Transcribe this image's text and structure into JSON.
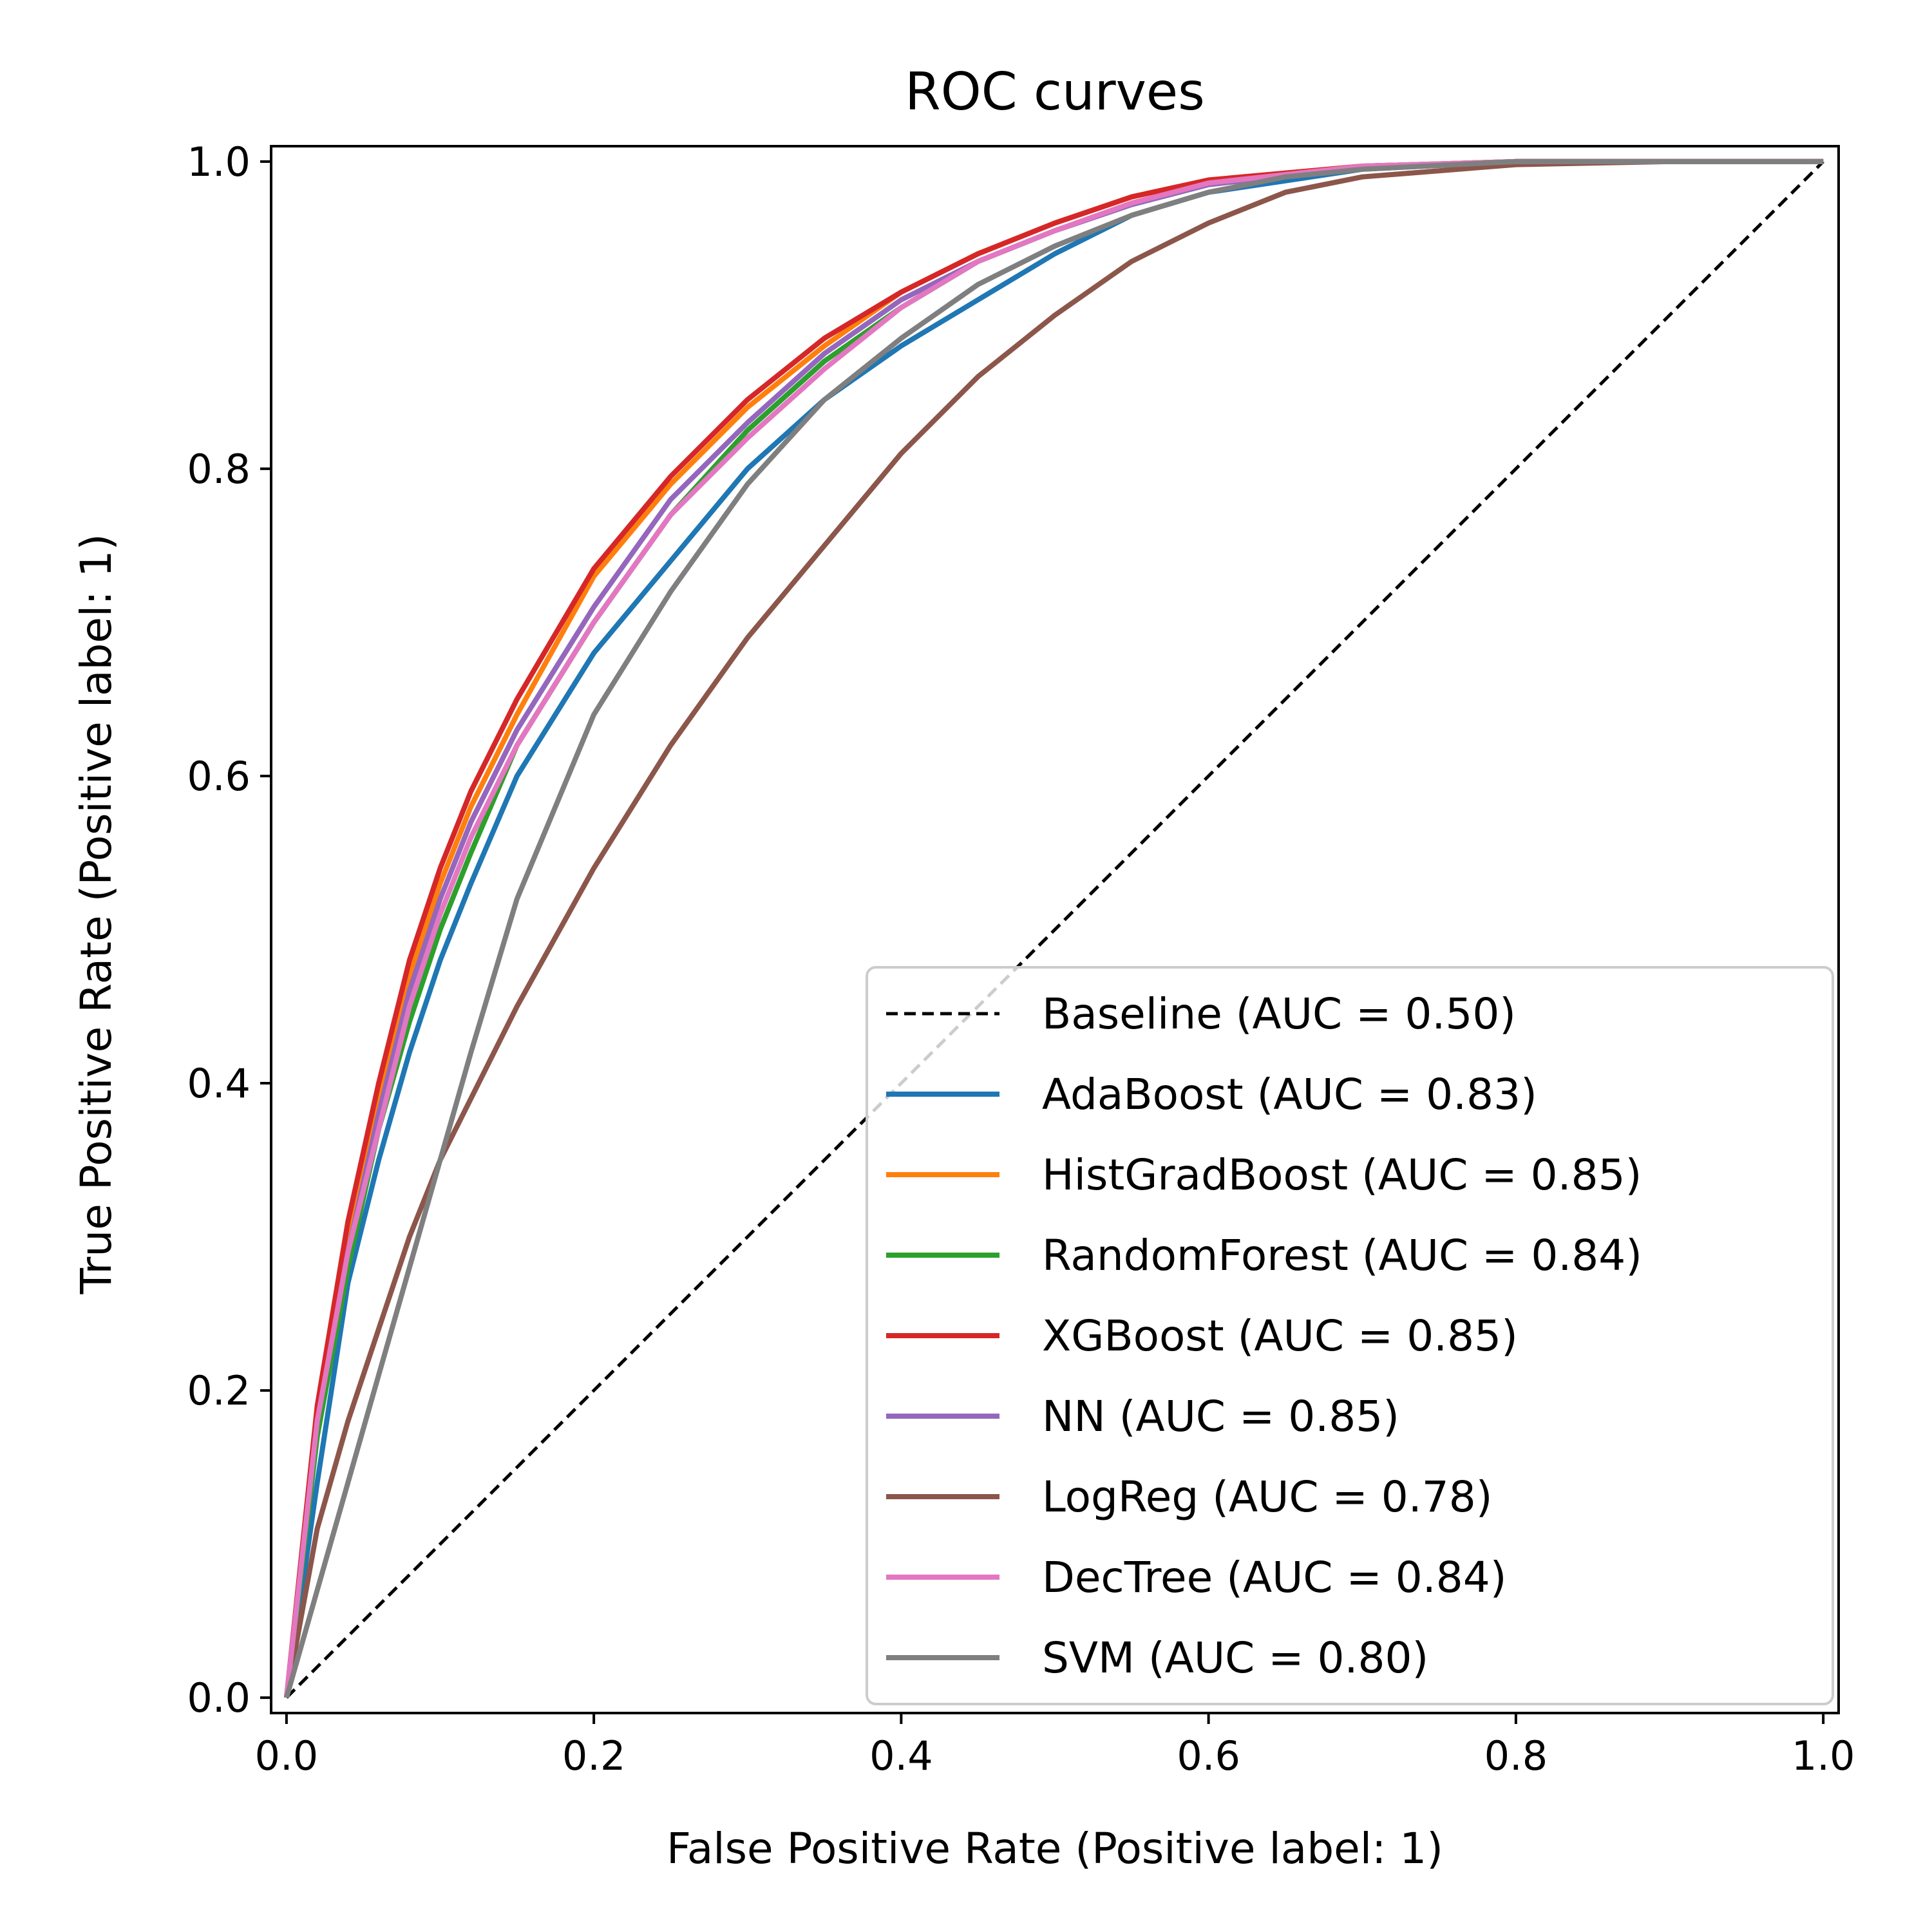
{
  "chart_data": {
    "type": "line",
    "title": "ROC curves",
    "xlabel": "False Positive Rate (Positive label: 1)",
    "ylabel": "True Positive Rate (Positive label: 1)",
    "xlim": [
      -0.01,
      1.01
    ],
    "ylim": [
      -0.01,
      1.01
    ],
    "xticks": [
      0.0,
      0.2,
      0.4,
      0.6,
      0.8,
      1.0
    ],
    "xtick_labels": [
      "0.0",
      "0.2",
      "0.4",
      "0.6",
      "0.8",
      "1.0"
    ],
    "yticks": [
      0.0,
      0.2,
      0.4,
      0.6,
      0.8,
      1.0
    ],
    "ytick_labels": [
      "0.0",
      "0.2",
      "0.4",
      "0.6",
      "0.8",
      "1.0"
    ],
    "grid": false,
    "legend_position": "lower-right",
    "series": [
      {
        "name": "Baseline (AUC = 0.50)",
        "color": "#000000",
        "dashed": true,
        "x": [
          0,
          1
        ],
        "y": [
          0,
          1
        ]
      },
      {
        "name": "AdaBoost (AUC = 0.83)",
        "color": "#1f77b4",
        "x": [
          0,
          0.02,
          0.04,
          0.06,
          0.08,
          0.1,
          0.12,
          0.15,
          0.2,
          0.25,
          0.3,
          0.35,
          0.4,
          0.45,
          0.5,
          0.55,
          0.6,
          0.7,
          0.8,
          0.9,
          1.0
        ],
        "y": [
          0,
          0.14,
          0.27,
          0.35,
          0.42,
          0.48,
          0.53,
          0.6,
          0.68,
          0.74,
          0.8,
          0.845,
          0.88,
          0.91,
          0.94,
          0.965,
          0.98,
          0.995,
          1.0,
          1.0,
          1.0
        ]
      },
      {
        "name": "HistGradBoost (AUC = 0.85)",
        "color": "#ff7f0e",
        "x": [
          0,
          0.02,
          0.04,
          0.06,
          0.08,
          0.1,
          0.12,
          0.15,
          0.2,
          0.25,
          0.3,
          0.35,
          0.4,
          0.45,
          0.5,
          0.55,
          0.6,
          0.7,
          0.8,
          0.9,
          1.0
        ],
        "y": [
          0,
          0.18,
          0.3,
          0.39,
          0.47,
          0.53,
          0.58,
          0.64,
          0.73,
          0.79,
          0.84,
          0.88,
          0.915,
          0.94,
          0.96,
          0.977,
          0.988,
          0.997,
          1.0,
          1.0,
          1.0
        ]
      },
      {
        "name": "RandomForest (AUC = 0.84)",
        "color": "#2ca02c",
        "x": [
          0,
          0.02,
          0.04,
          0.06,
          0.08,
          0.1,
          0.12,
          0.15,
          0.2,
          0.25,
          0.3,
          0.35,
          0.4,
          0.45,
          0.5,
          0.55,
          0.6,
          0.7,
          0.8,
          0.9,
          1.0
        ],
        "y": [
          0,
          0.17,
          0.28,
          0.37,
          0.44,
          0.5,
          0.55,
          0.62,
          0.7,
          0.77,
          0.825,
          0.87,
          0.905,
          0.935,
          0.955,
          0.972,
          0.985,
          0.996,
          1.0,
          1.0,
          1.0
        ]
      },
      {
        "name": "XGBoost (AUC = 0.85)",
        "color": "#d62728",
        "x": [
          0,
          0.02,
          0.04,
          0.06,
          0.08,
          0.1,
          0.12,
          0.15,
          0.2,
          0.25,
          0.3,
          0.35,
          0.4,
          0.45,
          0.5,
          0.55,
          0.6,
          0.7,
          0.8,
          0.9,
          1.0
        ],
        "y": [
          0,
          0.19,
          0.31,
          0.4,
          0.48,
          0.54,
          0.59,
          0.65,
          0.735,
          0.795,
          0.845,
          0.885,
          0.915,
          0.94,
          0.96,
          0.977,
          0.988,
          0.997,
          1.0,
          1.0,
          1.0
        ]
      },
      {
        "name": "NN (AUC = 0.85)",
        "color": "#9467bd",
        "x": [
          0,
          0.02,
          0.04,
          0.06,
          0.08,
          0.1,
          0.12,
          0.15,
          0.2,
          0.25,
          0.3,
          0.35,
          0.4,
          0.45,
          0.5,
          0.55,
          0.6,
          0.7,
          0.8,
          0.9,
          1.0
        ],
        "y": [
          0,
          0.18,
          0.29,
          0.38,
          0.46,
          0.52,
          0.57,
          0.63,
          0.71,
          0.78,
          0.83,
          0.875,
          0.91,
          0.935,
          0.955,
          0.972,
          0.985,
          0.996,
          1.0,
          1.0,
          1.0
        ]
      },
      {
        "name": "LogReg (AUC = 0.78)",
        "color": "#8c564b",
        "x": [
          0,
          0.02,
          0.04,
          0.06,
          0.08,
          0.1,
          0.12,
          0.15,
          0.2,
          0.25,
          0.3,
          0.35,
          0.4,
          0.45,
          0.5,
          0.55,
          0.6,
          0.65,
          0.7,
          0.8,
          0.9,
          1.0
        ],
        "y": [
          0,
          0.11,
          0.18,
          0.24,
          0.3,
          0.35,
          0.39,
          0.45,
          0.54,
          0.62,
          0.69,
          0.75,
          0.81,
          0.86,
          0.9,
          0.935,
          0.96,
          0.98,
          0.99,
          0.998,
          1.0,
          1.0
        ]
      },
      {
        "name": "DecTree (AUC = 0.84)",
        "color": "#e377c2",
        "x": [
          0,
          0.02,
          0.04,
          0.06,
          0.08,
          0.1,
          0.12,
          0.15,
          0.2,
          0.25,
          0.3,
          0.35,
          0.4,
          0.45,
          0.5,
          0.55,
          0.6,
          0.7,
          0.8,
          0.9,
          1.0
        ],
        "y": [
          0,
          0.18,
          0.29,
          0.37,
          0.45,
          0.51,
          0.56,
          0.62,
          0.7,
          0.77,
          0.82,
          0.865,
          0.905,
          0.935,
          0.955,
          0.973,
          0.986,
          0.997,
          1.0,
          1.0,
          1.0
        ]
      },
      {
        "name": "SVM (AUC = 0.80)",
        "color": "#7f7f7f",
        "x": [
          0,
          0.02,
          0.04,
          0.06,
          0.08,
          0.1,
          0.12,
          0.15,
          0.2,
          0.25,
          0.3,
          0.35,
          0.4,
          0.45,
          0.5,
          0.55,
          0.6,
          0.65,
          0.7,
          0.8,
          0.9,
          1.0
        ],
        "y": [
          0,
          0.07,
          0.14,
          0.21,
          0.28,
          0.35,
          0.42,
          0.52,
          0.64,
          0.72,
          0.79,
          0.845,
          0.885,
          0.92,
          0.945,
          0.965,
          0.98,
          0.99,
          0.995,
          1.0,
          1.0,
          1.0
        ]
      }
    ]
  }
}
